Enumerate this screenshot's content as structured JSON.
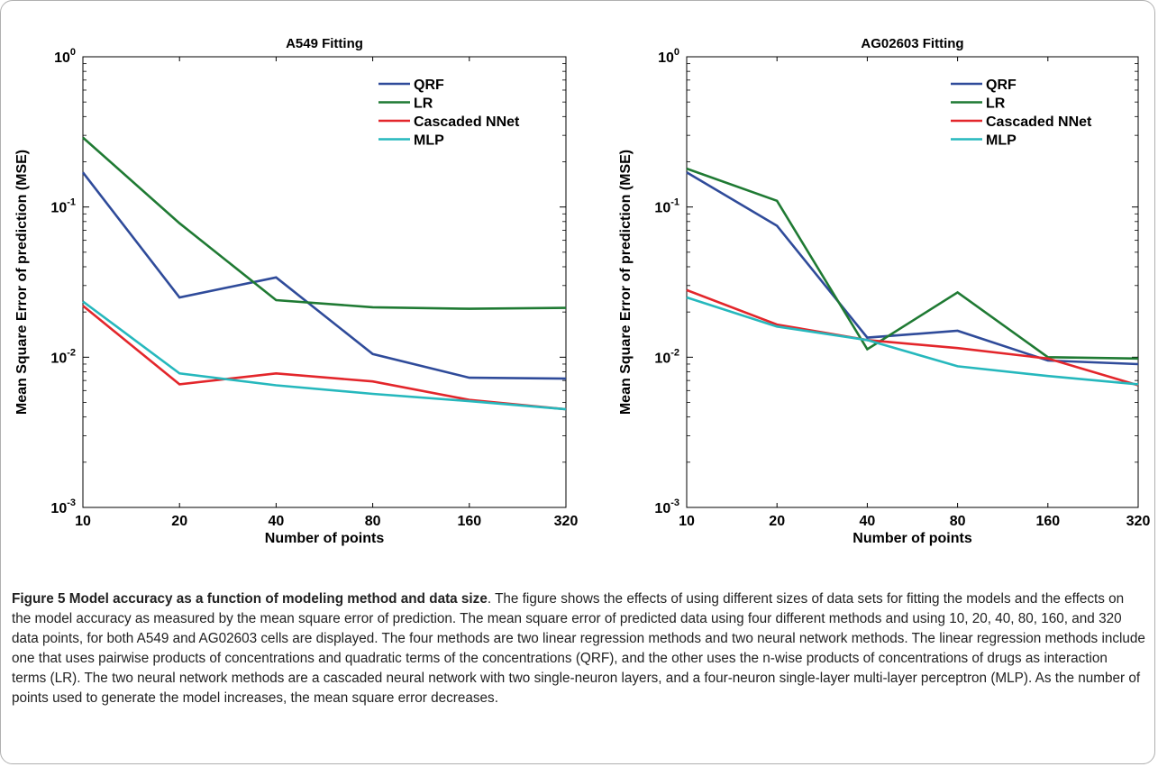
{
  "chart_data": [
    {
      "type": "line",
      "title": "A549 Fitting",
      "xlabel": "Number of points",
      "ylabel": "Mean Square Error of prediction (MSE)",
      "x": [
        10,
        20,
        40,
        80,
        160,
        320
      ],
      "x_ticks": [
        "10",
        "20",
        "40",
        "80",
        "160",
        "320"
      ],
      "y_scale": "log",
      "ylim": [
        0.001,
        1
      ],
      "y_ticks": [
        {
          "base": "10",
          "exp": "-3"
        },
        {
          "base": "10",
          "exp": "-2"
        },
        {
          "base": "10",
          "exp": "-1"
        },
        {
          "base": "10",
          "exp": "0"
        }
      ],
      "legend_position": "top-right",
      "grid": false,
      "series": [
        {
          "name": "QRF",
          "color": "#2f4b9a",
          "values": [
            0.17,
            0.025,
            0.034,
            0.0105,
            0.0073,
            0.0072
          ]
        },
        {
          "name": "LR",
          "color": "#1f7a33",
          "values": [
            0.29,
            0.078,
            0.024,
            0.0215,
            0.021,
            0.0213
          ]
        },
        {
          "name": "Cascaded NNet",
          "color": "#e3262b",
          "values": [
            0.022,
            0.0066,
            0.0078,
            0.0069,
            0.0052,
            0.0045
          ]
        },
        {
          "name": "MLP",
          "color": "#26b8bd",
          "values": [
            0.0235,
            0.0078,
            0.0065,
            0.0057,
            0.0051,
            0.0045
          ]
        }
      ]
    },
    {
      "type": "line",
      "title": "AG02603 Fitting",
      "xlabel": "Number of points",
      "ylabel": "Mean Square Error of prediction (MSE)",
      "x": [
        10,
        20,
        40,
        80,
        160,
        320
      ],
      "x_ticks": [
        "10",
        "20",
        "40",
        "80",
        "160",
        "320"
      ],
      "y_scale": "log",
      "ylim": [
        0.001,
        1
      ],
      "y_ticks": [
        {
          "base": "10",
          "exp": "-3"
        },
        {
          "base": "10",
          "exp": "-2"
        },
        {
          "base": "10",
          "exp": "-1"
        },
        {
          "base": "10",
          "exp": "0"
        }
      ],
      "legend_position": "top-right",
      "grid": false,
      "series": [
        {
          "name": "QRF",
          "color": "#2f4b9a",
          "values": [
            0.17,
            0.075,
            0.0135,
            0.015,
            0.0095,
            0.009
          ]
        },
        {
          "name": "LR",
          "color": "#1f7a33",
          "values": [
            0.18,
            0.11,
            0.0113,
            0.027,
            0.01,
            0.0098
          ]
        },
        {
          "name": "Cascaded NNet",
          "color": "#e3262b",
          "values": [
            0.028,
            0.0165,
            0.013,
            0.0115,
            0.0098,
            0.0065
          ]
        },
        {
          "name": "MLP",
          "color": "#26b8bd",
          "values": [
            0.025,
            0.016,
            0.013,
            0.0087,
            0.0075,
            0.0066
          ]
        }
      ]
    }
  ],
  "caption": {
    "label": "Figure 5 Model accuracy as a function of modeling method and data size",
    "text": ". The figure shows the effects of using different sizes of data sets for fitting the models and the effects on the model accuracy as measured by the mean square error of prediction. The mean square error of predicted data using four different methods and using 10, 20, 40, 80, 160, and 320 data points, for both A549 and AG02603 cells are displayed. The four methods are two linear regression methods and two neural network methods. The linear regression methods include one that uses pairwise products of concentrations and quadratic terms of the concentrations (QRF), and the other uses the n-wise products of concentrations of drugs as interaction terms (LR). The two neural network methods are a cascaded neural network with two single-neuron layers, and a four-neuron single-layer multi-layer perceptron (MLP). As the number of points used to generate the model increases, the mean square error decreases."
  }
}
